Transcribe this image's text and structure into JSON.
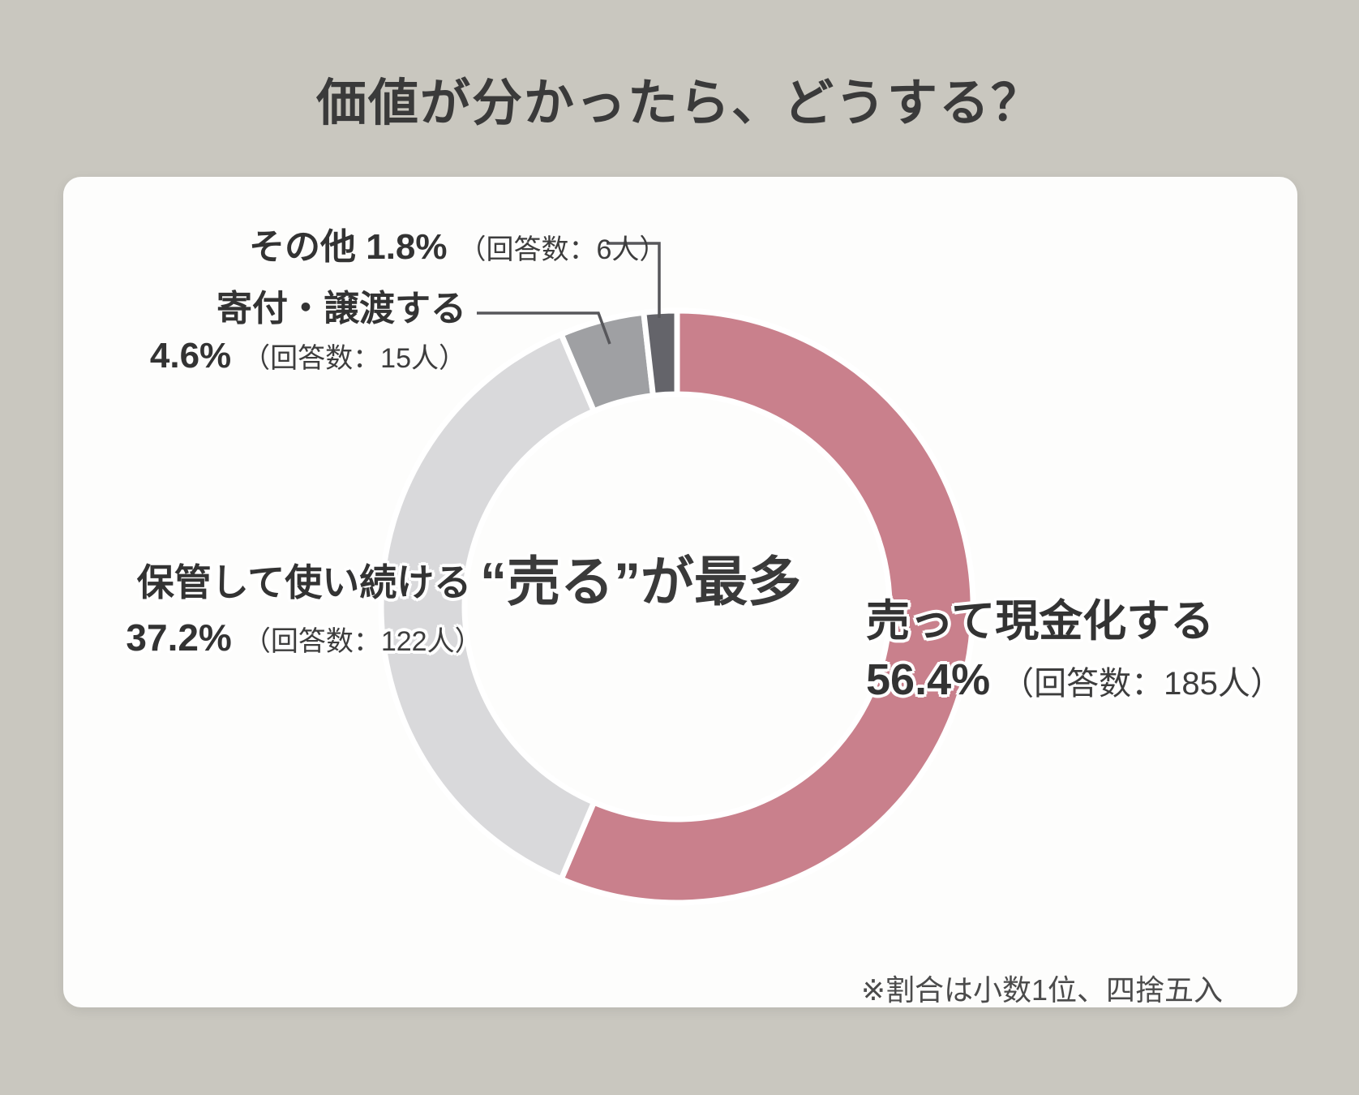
{
  "title": "価値が分かったら、どうする？",
  "center_label": "“売る”が最多",
  "footnote": "※割合は小数1位、四捨五入",
  "colors": {
    "background": "#c9c7bf",
    "card": "#fdfdfc",
    "slice_gap": "#ffffff",
    "leader_line": "#57575b",
    "text": "#3a3a3a"
  },
  "chart_data": {
    "type": "pie",
    "subtype": "donut",
    "title": "価値が分かったら、どうする？",
    "start_angle_deg": 0,
    "direction": "clockwise",
    "legend_position": "callouts",
    "slices": [
      {
        "label": "売って現金化する",
        "percent": 56.4,
        "respondents": 185,
        "color": "#c9808c"
      },
      {
        "label": "保管して使い続ける",
        "percent": 37.2,
        "respondents": 122,
        "color": "#d9d9db"
      },
      {
        "label": "寄付・譲渡する",
        "percent": 4.6,
        "respondents": 15,
        "color": "#9fa0a3"
      },
      {
        "label": "その他",
        "percent": 1.8,
        "respondents": 6,
        "color": "#64646a"
      }
    ]
  },
  "callouts": {
    "other": {
      "label_pct": "その他 1.8%",
      "count": "（回答数：6人）"
    },
    "donate": {
      "label": "寄付・譲渡する",
      "pct": "4.6%",
      "count": "（回答数：15人）"
    },
    "keep": {
      "label": "保管して使い続ける",
      "pct": "37.2%",
      "count": "（回答数：122人）"
    },
    "sell": {
      "label": "売って現金化する",
      "pct": "56.4%",
      "count": "（回答数：185人）"
    }
  }
}
